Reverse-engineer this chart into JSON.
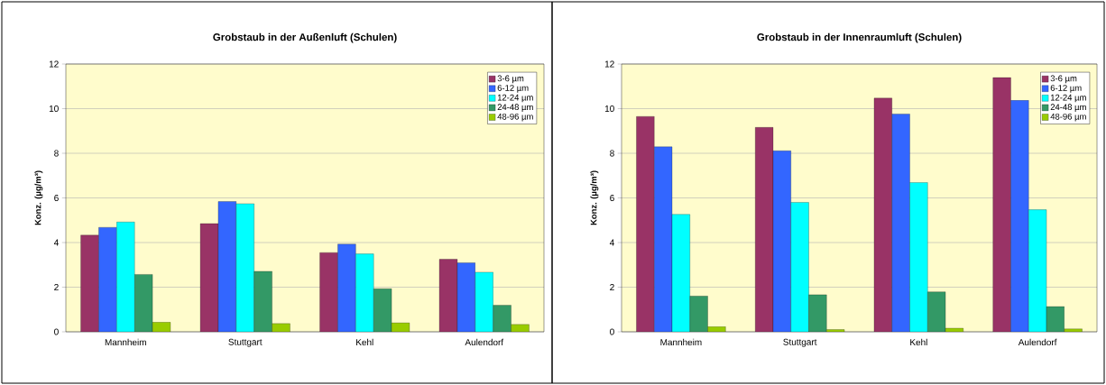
{
  "chart_data": [
    {
      "type": "bar",
      "title": "Grobstaub in der Außenluft (Schulen)",
      "ylabel": "Konz. (µg/m³)",
      "categories": [
        "Mannheim",
        "Stuttgart",
        "Kehl",
        "Aulendorf"
      ],
      "series": [
        {
          "name": "3-6 µm",
          "color": "#993366",
          "values": [
            4.33,
            4.85,
            3.55,
            3.25
          ]
        },
        {
          "name": "6-12 µm",
          "color": "#3366ff",
          "values": [
            4.68,
            5.84,
            3.93,
            3.09
          ]
        },
        {
          "name": "12-24 µm",
          "color": "#00ffff",
          "values": [
            4.92,
            5.74,
            3.49,
            2.67
          ]
        },
        {
          "name": "24-48 µm",
          "color": "#339966",
          "values": [
            2.57,
            2.71,
            1.93,
            1.19
          ]
        },
        {
          "name": "48-96 µm",
          "color": "#99cc00",
          "values": [
            0.43,
            0.37,
            0.4,
            0.33
          ]
        }
      ],
      "ylim": [
        0,
        12
      ],
      "yticks": [
        0,
        2,
        4,
        6,
        8,
        10,
        12
      ],
      "grid": "y",
      "legend": "top right"
    },
    {
      "type": "bar",
      "title": "Grobstaub in der Innenraumluft (Schulen)",
      "ylabel": "Konz. (µg/m³)",
      "categories": [
        "Mannheim",
        "Stuttgart",
        "Kehl",
        "Aulendorf"
      ],
      "series": [
        {
          "name": "3-6 µm",
          "color": "#993366",
          "values": [
            9.65,
            9.16,
            10.47,
            11.39
          ]
        },
        {
          "name": "6-12 µm",
          "color": "#3366ff",
          "values": [
            8.29,
            8.11,
            9.76,
            10.37
          ]
        },
        {
          "name": "12-24 µm",
          "color": "#00ffff",
          "values": [
            5.26,
            5.8,
            6.69,
            5.47
          ]
        },
        {
          "name": "24-48 µm",
          "color": "#339966",
          "values": [
            1.6,
            1.66,
            1.79,
            1.13
          ]
        },
        {
          "name": "48-96 µm",
          "color": "#99cc00",
          "values": [
            0.23,
            0.1,
            0.16,
            0.13
          ]
        }
      ],
      "ylim": [
        0,
        12
      ],
      "yticks": [
        0,
        2,
        4,
        6,
        8,
        10,
        12
      ],
      "grid": "y",
      "legend": "top right"
    }
  ]
}
